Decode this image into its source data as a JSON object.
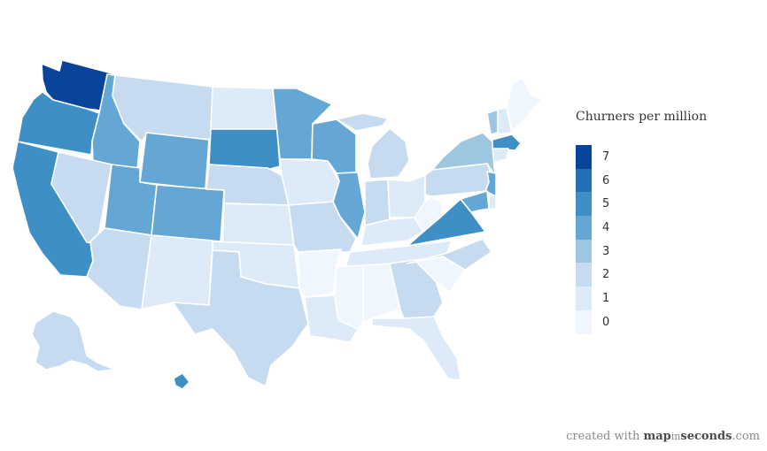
{
  "legend": {
    "title": "Churners per million",
    "items": [
      {
        "label": "7",
        "color": "#08459a"
      },
      {
        "label": "6",
        "color": "#2271b5"
      },
      {
        "label": "5",
        "color": "#3e8fc6"
      },
      {
        "label": "4",
        "color": "#64a7d5"
      },
      {
        "label": "3",
        "color": "#9dc7e1"
      },
      {
        "label": "2",
        "color": "#c6dbef"
      },
      {
        "label": "1",
        "color": "#ddeaf7"
      },
      {
        "label": "0",
        "color": "#f0f6fd"
      }
    ]
  },
  "credit": {
    "prefix": "created with ",
    "brand_a": "map",
    "brand_b": "in",
    "brand_c": "seconds",
    "suffix": ".com"
  },
  "states": [
    {
      "id": "WA",
      "value": 7
    },
    {
      "id": "OR",
      "value": 5
    },
    {
      "id": "CA",
      "value": 5
    },
    {
      "id": "ID",
      "value": 4
    },
    {
      "id": "NV",
      "value": 2
    },
    {
      "id": "MT",
      "value": 2
    },
    {
      "id": "WY",
      "value": 4
    },
    {
      "id": "UT",
      "value": 4
    },
    {
      "id": "AZ",
      "value": 2
    },
    {
      "id": "CO",
      "value": 4
    },
    {
      "id": "NM",
      "value": 1
    },
    {
      "id": "ND",
      "value": 1
    },
    {
      "id": "SD",
      "value": 5
    },
    {
      "id": "NE",
      "value": 2
    },
    {
      "id": "KS",
      "value": 1
    },
    {
      "id": "OK",
      "value": 1
    },
    {
      "id": "TX",
      "value": 2
    },
    {
      "id": "MN",
      "value": 4
    },
    {
      "id": "IA",
      "value": 1
    },
    {
      "id": "MO",
      "value": 2
    },
    {
      "id": "AR",
      "value": 0
    },
    {
      "id": "LA",
      "value": 1
    },
    {
      "id": "WI",
      "value": 4
    },
    {
      "id": "IL",
      "value": 4
    },
    {
      "id": "MI",
      "value": 2
    },
    {
      "id": "IN",
      "value": 2
    },
    {
      "id": "OH",
      "value": 1
    },
    {
      "id": "KY",
      "value": 1
    },
    {
      "id": "TN",
      "value": 1
    },
    {
      "id": "MS",
      "value": 0
    },
    {
      "id": "AL",
      "value": 0
    },
    {
      "id": "GA",
      "value": 2
    },
    {
      "id": "FL",
      "value": 1
    },
    {
      "id": "SC",
      "value": 0
    },
    {
      "id": "NC",
      "value": 2
    },
    {
      "id": "VA",
      "value": 5
    },
    {
      "id": "WV",
      "value": 0
    },
    {
      "id": "PA",
      "value": 2
    },
    {
      "id": "NY",
      "value": 3
    },
    {
      "id": "VT",
      "value": 3
    },
    {
      "id": "NH",
      "value": 1
    },
    {
      "id": "ME",
      "value": 0
    },
    {
      "id": "MA",
      "value": 5
    },
    {
      "id": "CT",
      "value": 1
    },
    {
      "id": "NJ",
      "value": 4
    },
    {
      "id": "MD",
      "value": 4
    },
    {
      "id": "DE",
      "value": 1
    },
    {
      "id": "AK",
      "value": 2
    },
    {
      "id": "HI",
      "value": 5
    },
    {
      "id": "GL",
      "value": 2
    }
  ]
}
